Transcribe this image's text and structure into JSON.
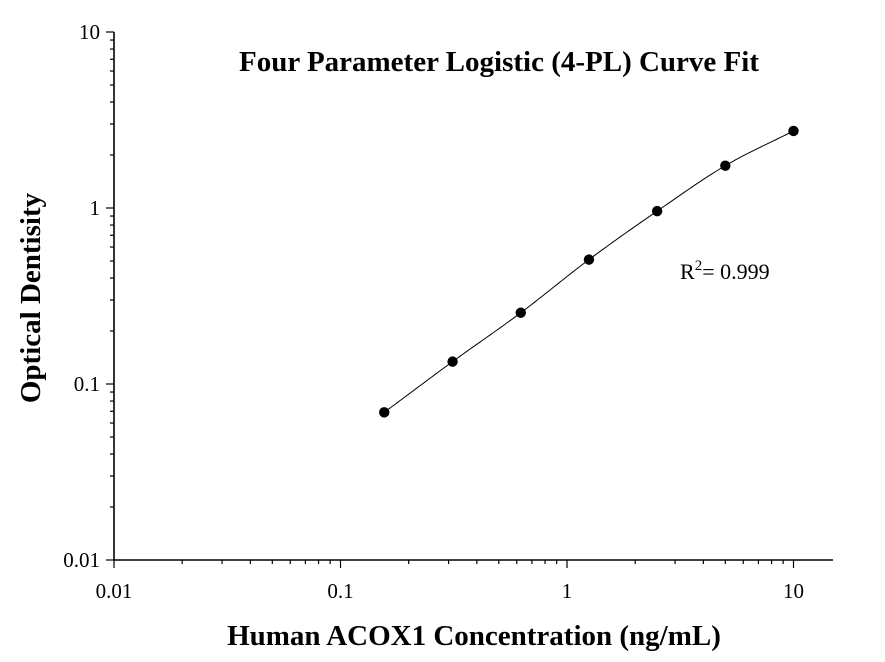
{
  "chart_data": {
    "type": "scatter",
    "title": "Four Parameter Logistic (4-PL) Curve Fit",
    "xlabel": "Human ACOX1 Concentration (ng/mL)",
    "ylabel": "Optical Dentisity",
    "xscale": "log",
    "yscale": "log",
    "xlim": [
      0.01,
      10
    ],
    "ylim": [
      0.01,
      10
    ],
    "x_ticks": [
      0.01,
      0.1,
      1,
      10
    ],
    "x_tick_labels": [
      "0.01",
      "0.1",
      "1",
      "10"
    ],
    "y_ticks": [
      0.01,
      0.1,
      1,
      10
    ],
    "y_tick_labels": [
      "0.01",
      "0.1",
      "1",
      "10"
    ],
    "grid": false,
    "legend": "none",
    "series": [
      {
        "points": [
          {
            "x": 0.156,
            "y": 0.069
          },
          {
            "x": 0.3125,
            "y": 0.134
          },
          {
            "x": 0.625,
            "y": 0.254
          },
          {
            "x": 1.25,
            "y": 0.509
          },
          {
            "x": 2.5,
            "y": 0.96
          },
          {
            "x": 5,
            "y": 1.74
          },
          {
            "x": 10,
            "y": 2.74
          }
        ],
        "fit": "4-PL curve"
      }
    ],
    "annotation": {
      "prefix": "R",
      "superscript": "2",
      "text": "= 0.999"
    }
  }
}
